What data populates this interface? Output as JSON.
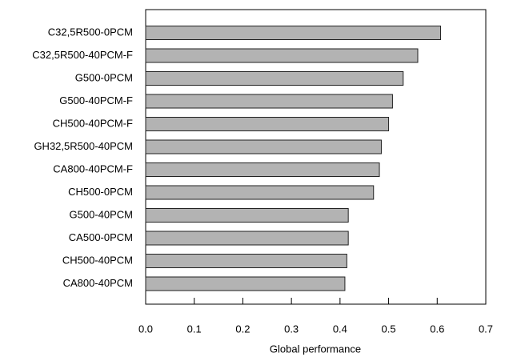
{
  "chart_data": {
    "type": "barh",
    "categories": [
      "C32,5R500-0PCM",
      "C32,5R500-40PCM-F",
      "G500-0PCM",
      "G500-40PCM-F",
      "CH500-40PCM-F",
      "GH32,5R500-40PCM",
      "CA800-40PCM-F",
      "CH500-0PCM",
      "G500-40PCM",
      "CA500-0PCM",
      "CH500-40PCM",
      "CA800-40PCM"
    ],
    "values": [
      0.607,
      0.56,
      0.53,
      0.508,
      0.5,
      0.485,
      0.481,
      0.469,
      0.417,
      0.417,
      0.414,
      0.41
    ],
    "color": "#b3b3b3",
    "x_label": "Global performance",
    "xlim": [
      0,
      0.7
    ],
    "xticks": [
      {
        "value": 0,
        "label": "0.0"
      },
      0.1,
      0.2,
      0.3,
      0.4,
      0.5,
      0.6,
      0.7
    ]
  }
}
